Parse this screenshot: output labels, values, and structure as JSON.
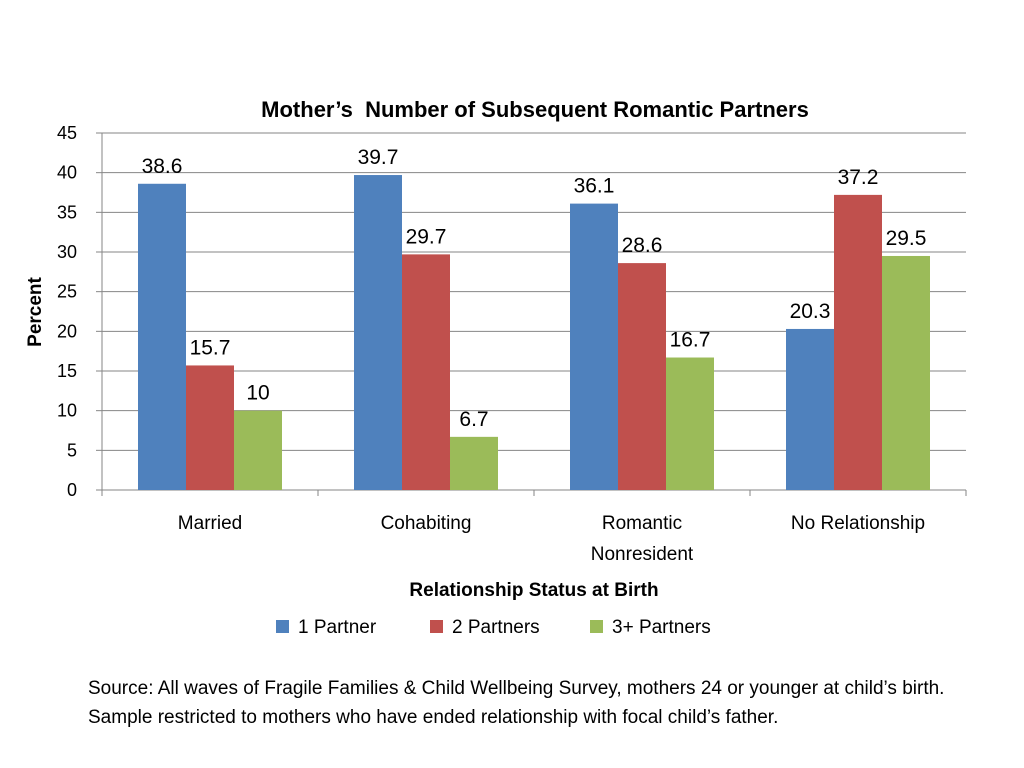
{
  "chart_data": {
    "type": "bar",
    "title": "Mother’s  Number of Subsequent Romantic Partners",
    "xlabel": "Relationship Status at Birth",
    "ylabel": "Percent",
    "ylim": [
      0,
      45
    ],
    "yticks": [
      0,
      5,
      10,
      15,
      20,
      25,
      30,
      35,
      40,
      45
    ],
    "grid": true,
    "legend_position": "bottom",
    "categories": [
      [
        "Married"
      ],
      [
        "Cohabiting"
      ],
      [
        "Romantic",
        "Nonresident"
      ],
      [
        "No Relationship"
      ]
    ],
    "series": [
      {
        "name": "1 Partner",
        "color": "#4F81BD",
        "values": [
          38.6,
          39.7,
          36.1,
          20.3
        ],
        "labels": [
          "38.6",
          "39.7",
          "36.1",
          "20.3"
        ]
      },
      {
        "name": "2 Partners",
        "color": "#C0504D",
        "values": [
          15.7,
          29.7,
          28.6,
          37.2
        ],
        "labels": [
          "15.7",
          "29.7",
          "28.6",
          "37.2"
        ]
      },
      {
        "name": "3+ Partners",
        "color": "#9BBB59",
        "values": [
          10,
          6.7,
          16.7,
          29.5
        ],
        "labels": [
          "10",
          "6.7",
          "16.7",
          "29.5"
        ]
      }
    ]
  },
  "source_note": "Source: All waves of Fragile Families & Child Wellbeing Survey, mothers 24 or younger at child’s birth. Sample restricted to mothers who have ended relationship with focal child’s father."
}
